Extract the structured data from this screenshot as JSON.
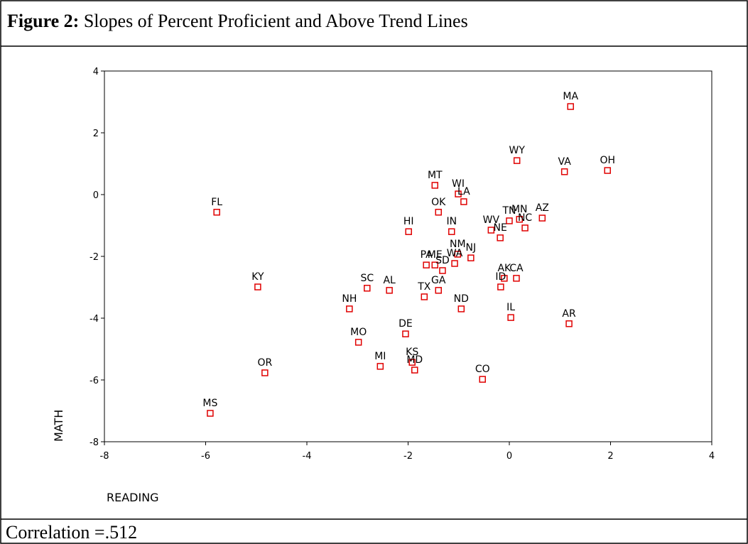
{
  "chart_data": {
    "type": "scatter",
    "figure_label": "Figure 2:",
    "title": "Slopes of Percent Proficient and Above Trend Lines",
    "xlabel": "READING",
    "ylabel": "MATH",
    "caption": "Correlation =.512",
    "color": "#e00000",
    "xlim": [
      -8,
      4
    ],
    "xticks": [
      -8,
      -6,
      -4,
      -2,
      0,
      2,
      4
    ],
    "ylim": [
      -8,
      4
    ],
    "yticks": [
      -8,
      -6,
      -4,
      -2,
      0,
      2,
      4
    ],
    "labels": [
      "MA",
      "WY",
      "VA",
      "OH",
      "MT",
      "WI",
      "LA",
      "FL",
      "OK",
      "TN",
      "MN",
      "NC",
      "AZ",
      "WV",
      "NE",
      "HI",
      "IN",
      "NM",
      "NJ",
      "PA",
      "ME",
      "WA",
      "SD",
      "AK",
      "CA",
      "ID",
      "KY",
      "SC",
      "AL",
      "GA",
      "TX",
      "NH",
      "ND",
      "IL",
      "AR",
      "DE",
      "MO",
      "KS",
      "MI",
      "MD",
      "OR",
      "CO",
      "MS"
    ],
    "x": [
      1.21,
      0.15,
      1.09,
      1.94,
      -1.47,
      -1.01,
      -0.9,
      -5.78,
      -1.4,
      0.0,
      0.2,
      0.31,
      0.65,
      -0.36,
      -0.18,
      -1.99,
      -1.14,
      -1.02,
      -0.76,
      -1.64,
      -1.47,
      -1.08,
      -1.32,
      -0.1,
      0.14,
      -0.17,
      -4.97,
      -2.81,
      -2.37,
      -1.4,
      -1.68,
      -3.16,
      -0.95,
      0.03,
      1.18,
      -2.05,
      -2.98,
      -1.92,
      -2.55,
      -1.87,
      -4.83,
      -0.53,
      -5.91
    ],
    "y": [
      2.85,
      1.1,
      0.74,
      0.78,
      0.3,
      0.02,
      -0.23,
      -0.57,
      -0.57,
      -0.85,
      -0.8,
      -1.08,
      -0.76,
      -1.15,
      -1.4,
      -1.2,
      -1.2,
      -1.93,
      -2.05,
      -2.28,
      -2.28,
      -2.23,
      -2.46,
      -2.71,
      -2.71,
      -2.99,
      -2.99,
      -3.03,
      -3.1,
      -3.1,
      -3.31,
      -3.7,
      -3.7,
      -3.98,
      -4.18,
      -4.51,
      -4.78,
      -5.43,
      -5.56,
      -5.68,
      -5.77,
      -5.98,
      -7.08
    ]
  }
}
